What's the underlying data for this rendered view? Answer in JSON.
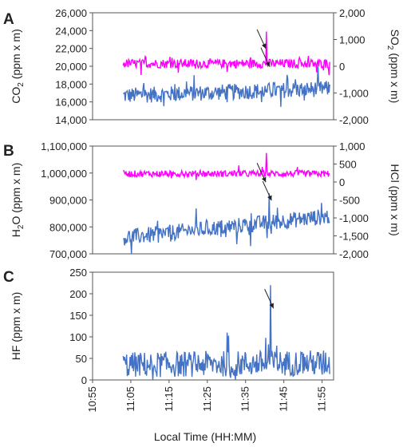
{
  "chart_data": [
    {
      "type": "line",
      "label": "A",
      "ylabel_left": [
        "CO",
        "2",
        " (ppm x m)"
      ],
      "ylabel_right": [
        "SO",
        "2",
        " (ppm x m)"
      ],
      "ylim_left": [
        14000,
        26000
      ],
      "yticks_left": [
        "14,000",
        "16,000",
        "18,000",
        "20,000",
        "22,000",
        "24,000",
        "26,000"
      ],
      "ylim_right": [
        -2000,
        2000
      ],
      "yticks_right": [
        "-2,000",
        "-1,000",
        "0",
        "1,000",
        "2,000"
      ],
      "series": [
        {
          "axis": "left",
          "color": "#4472c4",
          "baseline": 16700,
          "noise": 900,
          "trend": 800,
          "spike_at": 40.5,
          "spike_to": 17300
        },
        {
          "axis": "right",
          "color": "#ff00ff",
          "baseline": 100,
          "noise": 170,
          "trend": 0,
          "spike_at": 40.5,
          "spike_to": 1300
        }
      ],
      "annotations": [
        {
          "type": "arrow",
          "x": 40.5,
          "near": "SO2 spike"
        },
        {
          "type": "arrow",
          "x": 41.5,
          "near": "CO2 peak"
        }
      ]
    },
    {
      "type": "line",
      "label": "B",
      "ylabel_left": [
        "H",
        "2",
        "O (ppm x m)"
      ],
      "ylabel_right": [
        "HCl (ppm x m)"
      ],
      "ylim_left": [
        700000,
        1100000
      ],
      "yticks_left": [
        "700,000",
        "800,000",
        "900,000",
        "1,000,000",
        "1,100,000"
      ],
      "ylim_right": [
        -2000,
        1000
      ],
      "yticks_right": [
        "-2,000",
        "-1,500",
        "-1,000",
        "-500",
        "0",
        "500",
        "1,000"
      ],
      "series": [
        {
          "axis": "left",
          "color": "#4472c4",
          "baseline": 760000,
          "noise": 30000,
          "trend": 80000,
          "spike_at": 41.2,
          "spike_to": 925000
        },
        {
          "axis": "right",
          "color": "#ff00ff",
          "baseline": 230,
          "noise": 90,
          "trend": 0,
          "spike_at": 40.5,
          "spike_to": 810
        }
      ],
      "annotations": [
        {
          "type": "arrow",
          "x": 40.5,
          "near": "HCl spike"
        },
        {
          "type": "arrow",
          "x": 42.0,
          "near": "H2O peak"
        }
      ]
    },
    {
      "type": "line",
      "label": "C",
      "ylabel_left": [
        "HF (ppm x m)"
      ],
      "ylim_left": [
        0,
        250
      ],
      "yticks_left": [
        "0",
        "50",
        "100",
        "150",
        "200",
        "250"
      ],
      "xlabel": "Local Time (HH:MM)",
      "xlim_minutes": [
        -5,
        58
      ],
      "xticks": [
        "10:55",
        "11:05",
        "11:15",
        "11:25",
        "11:35",
        "11:45",
        "11:55"
      ],
      "series": [
        {
          "axis": "left",
          "color": "#4472c4",
          "baseline": 35,
          "noise": 30,
          "trend": 5,
          "spike_at": 41.5,
          "spike_to": 220
        }
      ],
      "annotations": [
        {
          "type": "arrow",
          "x": 42.5,
          "near": "HF spike"
        }
      ]
    }
  ],
  "xaxis": {
    "label": "Local Time (HH:MM)",
    "ticks": [
      "10:55",
      "11:05",
      "11:15",
      "11:25",
      "11:35",
      "11:45",
      "11:55"
    ],
    "tick_minutes": [
      -5,
      5,
      15,
      25,
      35,
      45,
      55
    ],
    "start": 3,
    "end": 57
  }
}
